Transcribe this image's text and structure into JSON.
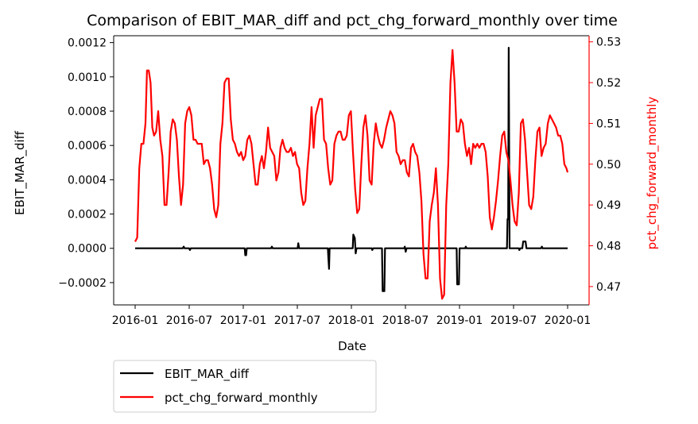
{
  "chart_data": {
    "type": "line",
    "title": "Comparison of EBIT_MAR_diff and pct_chg_forward_monthly over time",
    "xlabel": "Date",
    "ylabel_left": "EBIT_MAR_diff",
    "ylabel_right": "pct_chg_forward_monthly",
    "x_ticks": [
      "2016-01",
      "2016-07",
      "2017-01",
      "2017-07",
      "2018-01",
      "2018-07",
      "2019-01",
      "2019-07",
      "2020-01"
    ],
    "ylim_left": [
      -0.00033,
      0.00124
    ],
    "yticks_left": [
      "−0.0002",
      "0.0000",
      "0.0002",
      "0.0004",
      "0.0006",
      "0.0008",
      "0.0010",
      "0.0012"
    ],
    "ylim_right": [
      0.4655,
      0.5315
    ],
    "yticks_right": [
      "0.47",
      "0.48",
      "0.49",
      "0.50",
      "0.51",
      "0.52",
      "0.53"
    ],
    "grid": false,
    "legend_position": "below plot, left",
    "colors": {
      "left_series": "#000000",
      "right_series": "#ff0000",
      "right_axis": "#ff0000"
    },
    "series": [
      {
        "name": "EBIT_MAR_diff",
        "axis": "left",
        "color": "#000000",
        "points": [
          [
            "2016-01-01",
            0.0
          ],
          [
            "2016-06-10",
            0.0
          ],
          [
            "2016-06-13",
            1e-05
          ],
          [
            "2016-06-16",
            0.0
          ],
          [
            "2016-07-01",
            0.0
          ],
          [
            "2016-07-04",
            -1e-05
          ],
          [
            "2016-07-07",
            0.0
          ],
          [
            "2017-01-05",
            0.0
          ],
          [
            "2017-01-07",
            -4e-05
          ],
          [
            "2017-01-10",
            -4e-05
          ],
          [
            "2017-01-12",
            0.0
          ],
          [
            "2017-04-04",
            0.0
          ],
          [
            "2017-04-07",
            1e-05
          ],
          [
            "2017-04-10",
            0.0
          ],
          [
            "2017-07-03",
            0.0
          ],
          [
            "2017-07-05",
            3e-05
          ],
          [
            "2017-07-08",
            0.0
          ],
          [
            "2017-10-13",
            0.0
          ],
          [
            "2017-10-15",
            -6e-05
          ],
          [
            "2017-10-17",
            -0.00012
          ],
          [
            "2017-10-19",
            0.0
          ],
          [
            "2018-01-05",
            0.0
          ],
          [
            "2018-01-07",
            8e-05
          ],
          [
            "2018-01-12",
            6e-05
          ],
          [
            "2018-01-15",
            -3e-05
          ],
          [
            "2018-01-18",
            0.0
          ],
          [
            "2018-03-10",
            0.0
          ],
          [
            "2018-03-12",
            -1e-05
          ],
          [
            "2018-03-15",
            0.0
          ],
          [
            "2018-04-14",
            0.0
          ],
          [
            "2018-04-16",
            -0.00025
          ],
          [
            "2018-04-22",
            -0.00025
          ],
          [
            "2018-04-24",
            0.0
          ],
          [
            "2018-06-28",
            0.0
          ],
          [
            "2018-06-30",
            1e-05
          ],
          [
            "2018-07-03",
            -2e-05
          ],
          [
            "2018-07-06",
            0.0
          ],
          [
            "2018-12-22",
            0.0
          ],
          [
            "2018-12-24",
            -0.00021
          ],
          [
            "2018-12-30",
            -0.00021
          ],
          [
            "2019-01-01",
            0.0
          ],
          [
            "2019-01-20",
            0.0
          ],
          [
            "2019-01-22",
            1e-05
          ],
          [
            "2019-01-25",
            0.0
          ],
          [
            "2019-06-10",
            0.0
          ],
          [
            "2019-06-12",
            0.00017
          ],
          [
            "2019-06-14",
            0.00017
          ],
          [
            "2019-06-16",
            0.00117
          ],
          [
            "2019-06-19",
            0.0
          ],
          [
            "2019-07-20",
            0.0
          ],
          [
            "2019-07-22",
            -1e-05
          ],
          [
            "2019-07-25",
            0.0
          ],
          [
            "2019-08-01",
            0.0
          ],
          [
            "2019-08-04",
            4e-05
          ],
          [
            "2019-08-12",
            4e-05
          ],
          [
            "2019-08-15",
            0.0
          ],
          [
            "2019-10-03",
            0.0
          ],
          [
            "2019-10-06",
            1e-05
          ],
          [
            "2019-10-09",
            0.0
          ],
          [
            "2020-01-01",
            0.0
          ]
        ]
      },
      {
        "name": "pct_chg_forward_monthly",
        "axis": "right",
        "color": "#ff0000",
        "points": [
          [
            "2016-01-01",
            0.481
          ],
          [
            "2016-01-08",
            0.482
          ],
          [
            "2016-01-15",
            0.499
          ],
          [
            "2016-01-22",
            0.505
          ],
          [
            "2016-01-29",
            0.505
          ],
          [
            "2016-02-05",
            0.51
          ],
          [
            "2016-02-10",
            0.523
          ],
          [
            "2016-02-16",
            0.523
          ],
          [
            "2016-02-22",
            0.52
          ],
          [
            "2016-02-28",
            0.509
          ],
          [
            "2016-03-05",
            0.507
          ],
          [
            "2016-03-12",
            0.508
          ],
          [
            "2016-03-19",
            0.513
          ],
          [
            "2016-03-26",
            0.506
          ],
          [
            "2016-04-02",
            0.502
          ],
          [
            "2016-04-09",
            0.49
          ],
          [
            "2016-04-16",
            0.49
          ],
          [
            "2016-04-23",
            0.498
          ],
          [
            "2016-04-30",
            0.508
          ],
          [
            "2016-05-07",
            0.511
          ],
          [
            "2016-05-14",
            0.51
          ],
          [
            "2016-05-21",
            0.506
          ],
          [
            "2016-05-28",
            0.497
          ],
          [
            "2016-06-04",
            0.49
          ],
          [
            "2016-06-11",
            0.495
          ],
          [
            "2016-06-18",
            0.51
          ],
          [
            "2016-06-25",
            0.513
          ],
          [
            "2016-07-02",
            0.514
          ],
          [
            "2016-07-09",
            0.512
          ],
          [
            "2016-07-16",
            0.506
          ],
          [
            "2016-07-23",
            0.506
          ],
          [
            "2016-07-30",
            0.505
          ],
          [
            "2016-08-06",
            0.505
          ],
          [
            "2016-08-13",
            0.505
          ],
          [
            "2016-08-20",
            0.5
          ],
          [
            "2016-08-27",
            0.501
          ],
          [
            "2016-09-03",
            0.501
          ],
          [
            "2016-09-10",
            0.499
          ],
          [
            "2016-09-17",
            0.495
          ],
          [
            "2016-09-24",
            0.489
          ],
          [
            "2016-10-01",
            0.487
          ],
          [
            "2016-10-08",
            0.49
          ],
          [
            "2016-10-15",
            0.505
          ],
          [
            "2016-10-22",
            0.51
          ],
          [
            "2016-10-29",
            0.52
          ],
          [
            "2016-11-05",
            0.521
          ],
          [
            "2016-11-12",
            0.521
          ],
          [
            "2016-11-19",
            0.511
          ],
          [
            "2016-11-26",
            0.506
          ],
          [
            "2016-12-03",
            0.505
          ],
          [
            "2016-12-10",
            0.503
          ],
          [
            "2016-12-17",
            0.502
          ],
          [
            "2016-12-24",
            0.503
          ],
          [
            "2016-12-31",
            0.501
          ],
          [
            "2017-01-07",
            0.502
          ],
          [
            "2017-01-14",
            0.506
          ],
          [
            "2017-01-21",
            0.507
          ],
          [
            "2017-01-28",
            0.505
          ],
          [
            "2017-02-04",
            0.5
          ],
          [
            "2017-02-11",
            0.495
          ],
          [
            "2017-02-18",
            0.495
          ],
          [
            "2017-02-25",
            0.5
          ],
          [
            "2017-03-04",
            0.502
          ],
          [
            "2017-03-11",
            0.499
          ],
          [
            "2017-03-18",
            0.503
          ],
          [
            "2017-03-25",
            0.509
          ],
          [
            "2017-04-01",
            0.504
          ],
          [
            "2017-04-08",
            0.503
          ],
          [
            "2017-04-15",
            0.502
          ],
          [
            "2017-04-22",
            0.496
          ],
          [
            "2017-04-29",
            0.498
          ],
          [
            "2017-05-06",
            0.504
          ],
          [
            "2017-05-13",
            0.506
          ],
          [
            "2017-05-20",
            0.504
          ],
          [
            "2017-05-27",
            0.503
          ],
          [
            "2017-06-03",
            0.503
          ],
          [
            "2017-06-10",
            0.504
          ],
          [
            "2017-06-17",
            0.502
          ],
          [
            "2017-06-24",
            0.503
          ],
          [
            "2017-07-01",
            0.5
          ],
          [
            "2017-07-08",
            0.499
          ],
          [
            "2017-07-15",
            0.493
          ],
          [
            "2017-07-22",
            0.49
          ],
          [
            "2017-07-29",
            0.491
          ],
          [
            "2017-08-05",
            0.499
          ],
          [
            "2017-08-12",
            0.505
          ],
          [
            "2017-08-19",
            0.514
          ],
          [
            "2017-08-26",
            0.504
          ],
          [
            "2017-09-02",
            0.512
          ],
          [
            "2017-09-09",
            0.514
          ],
          [
            "2017-09-16",
            0.516
          ],
          [
            "2017-09-23",
            0.516
          ],
          [
            "2017-09-30",
            0.506
          ],
          [
            "2017-10-07",
            0.505
          ],
          [
            "2017-10-14",
            0.499
          ],
          [
            "2017-10-21",
            0.495
          ],
          [
            "2017-10-28",
            0.496
          ],
          [
            "2017-11-04",
            0.505
          ],
          [
            "2017-11-11",
            0.507
          ],
          [
            "2017-11-18",
            0.508
          ],
          [
            "2017-11-25",
            0.508
          ],
          [
            "2017-12-02",
            0.506
          ],
          [
            "2017-12-09",
            0.506
          ],
          [
            "2017-12-16",
            0.507
          ],
          [
            "2017-12-23",
            0.512
          ],
          [
            "2017-12-30",
            0.513
          ],
          [
            "2018-01-06",
            0.503
          ],
          [
            "2018-01-13",
            0.494
          ],
          [
            "2018-01-20",
            0.488
          ],
          [
            "2018-01-27",
            0.489
          ],
          [
            "2018-02-03",
            0.5
          ],
          [
            "2018-02-10",
            0.509
          ],
          [
            "2018-02-17",
            0.512
          ],
          [
            "2018-02-24",
            0.507
          ],
          [
            "2018-03-03",
            0.496
          ],
          [
            "2018-03-10",
            0.495
          ],
          [
            "2018-03-17",
            0.505
          ],
          [
            "2018-03-24",
            0.51
          ],
          [
            "2018-03-31",
            0.507
          ],
          [
            "2018-04-07",
            0.505
          ],
          [
            "2018-04-14",
            0.504
          ],
          [
            "2018-04-21",
            0.506
          ],
          [
            "2018-04-28",
            0.509
          ],
          [
            "2018-05-05",
            0.511
          ],
          [
            "2018-05-12",
            0.513
          ],
          [
            "2018-05-19",
            0.512
          ],
          [
            "2018-05-26",
            0.51
          ],
          [
            "2018-06-02",
            0.503
          ],
          [
            "2018-06-09",
            0.502
          ],
          [
            "2018-06-16",
            0.5
          ],
          [
            "2018-06-23",
            0.501
          ],
          [
            "2018-06-30",
            0.501
          ],
          [
            "2018-07-07",
            0.498
          ],
          [
            "2018-07-14",
            0.497
          ],
          [
            "2018-07-21",
            0.504
          ],
          [
            "2018-07-28",
            0.505
          ],
          [
            "2018-08-04",
            0.503
          ],
          [
            "2018-08-11",
            0.502
          ],
          [
            "2018-08-18",
            0.498
          ],
          [
            "2018-08-25",
            0.491
          ],
          [
            "2018-09-01",
            0.478
          ],
          [
            "2018-09-08",
            0.472
          ],
          [
            "2018-09-15",
            0.472
          ],
          [
            "2018-09-22",
            0.486
          ],
          [
            "2018-09-29",
            0.49
          ],
          [
            "2018-10-06",
            0.493
          ],
          [
            "2018-10-13",
            0.499
          ],
          [
            "2018-10-20",
            0.49
          ],
          [
            "2018-10-27",
            0.472
          ],
          [
            "2018-11-03",
            0.467
          ],
          [
            "2018-11-10",
            0.468
          ],
          [
            "2018-11-17",
            0.49
          ],
          [
            "2018-11-24",
            0.5
          ],
          [
            "2018-12-01",
            0.52
          ],
          [
            "2018-12-08",
            0.528
          ],
          [
            "2018-12-15",
            0.52
          ],
          [
            "2018-12-22",
            0.508
          ],
          [
            "2018-12-29",
            0.508
          ],
          [
            "2019-01-05",
            0.511
          ],
          [
            "2019-01-12",
            0.51
          ],
          [
            "2019-01-19",
            0.505
          ],
          [
            "2019-01-26",
            0.502
          ],
          [
            "2019-02-02",
            0.504
          ],
          [
            "2019-02-09",
            0.5
          ],
          [
            "2019-02-16",
            0.505
          ],
          [
            "2019-02-23",
            0.504
          ],
          [
            "2019-03-02",
            0.505
          ],
          [
            "2019-03-09",
            0.504
          ],
          [
            "2019-03-16",
            0.505
          ],
          [
            "2019-03-23",
            0.505
          ],
          [
            "2019-03-30",
            0.503
          ],
          [
            "2019-04-06",
            0.497
          ],
          [
            "2019-04-13",
            0.487
          ],
          [
            "2019-04-20",
            0.484
          ],
          [
            "2019-04-27",
            0.487
          ],
          [
            "2019-05-04",
            0.491
          ],
          [
            "2019-05-11",
            0.496
          ],
          [
            "2019-05-18",
            0.502
          ],
          [
            "2019-05-25",
            0.507
          ],
          [
            "2019-06-01",
            0.508
          ],
          [
            "2019-06-08",
            0.503
          ],
          [
            "2019-06-15",
            0.501
          ],
          [
            "2019-06-22",
            0.496
          ],
          [
            "2019-06-29",
            0.49
          ],
          [
            "2019-07-06",
            0.486
          ],
          [
            "2019-07-13",
            0.485
          ],
          [
            "2019-07-20",
            0.493
          ],
          [
            "2019-07-27",
            0.51
          ],
          [
            "2019-08-03",
            0.511
          ],
          [
            "2019-08-10",
            0.506
          ],
          [
            "2019-08-17",
            0.498
          ],
          [
            "2019-08-24",
            0.49
          ],
          [
            "2019-08-31",
            0.489
          ],
          [
            "2019-09-07",
            0.492
          ],
          [
            "2019-09-14",
            0.501
          ],
          [
            "2019-09-21",
            0.508
          ],
          [
            "2019-09-28",
            0.509
          ],
          [
            "2019-10-05",
            0.502
          ],
          [
            "2019-10-12",
            0.504
          ],
          [
            "2019-10-19",
            0.505
          ],
          [
            "2019-10-26",
            0.51
          ],
          [
            "2019-11-02",
            0.512
          ],
          [
            "2019-11-09",
            0.511
          ],
          [
            "2019-11-16",
            0.51
          ],
          [
            "2019-11-23",
            0.509
          ],
          [
            "2019-11-30",
            0.507
          ],
          [
            "2019-12-07",
            0.507
          ],
          [
            "2019-12-14",
            0.505
          ],
          [
            "2019-12-21",
            0.5
          ],
          [
            "2019-12-28",
            0.499
          ],
          [
            "2020-01-01",
            0.498
          ]
        ]
      }
    ]
  }
}
